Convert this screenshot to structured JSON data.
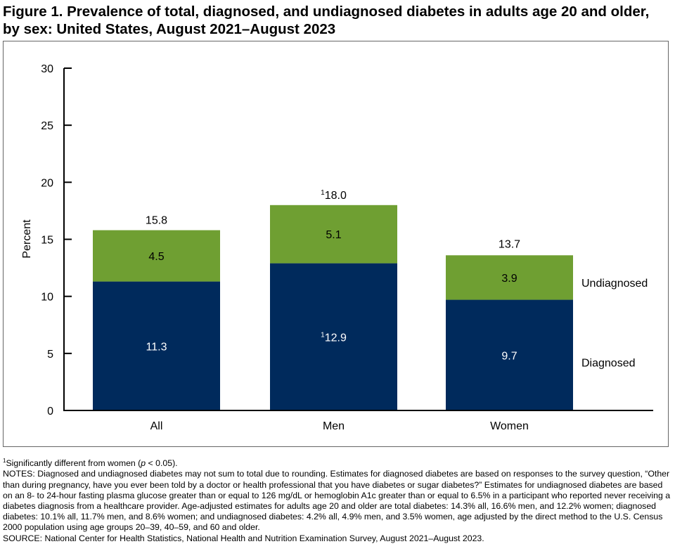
{
  "title": "Figure 1. Prevalence of total, diagnosed, and undiagnosed diabetes in adults age 20 and older, by sex: United States, August 2021–August 2023",
  "chart_data": {
    "type": "stacked-bar",
    "categories": [
      "All",
      "Men",
      "Women"
    ],
    "series": [
      {
        "name": "Diagnosed",
        "values": [
          11.3,
          12.9,
          9.7
        ],
        "labels": [
          "11.3",
          "12.9",
          "9.7"
        ],
        "label_markers": [
          "",
          "1",
          ""
        ],
        "color": "#002a5c"
      },
      {
        "name": "Undiagnosed",
        "values": [
          4.5,
          5.1,
          3.9
        ],
        "labels": [
          "4.5",
          "5.1",
          "3.9"
        ],
        "label_markers": [
          "",
          "",
          ""
        ],
        "color": "#6f9f32"
      }
    ],
    "totals": [
      15.8,
      18.0,
      13.7
    ],
    "total_labels": [
      "15.8",
      "18.0",
      "13.7"
    ],
    "total_markers": [
      "",
      "1",
      ""
    ],
    "ylabel": "Percent",
    "xlabel": "",
    "ylim": [
      0,
      30
    ],
    "yticks": [
      0,
      5,
      10,
      15,
      20,
      25,
      30
    ],
    "grid": false,
    "legend_placement": "right, inline labels"
  },
  "footnotes": {
    "sig_marker": "1",
    "sig_text_before": "Significantly different from women (",
    "sig_p": "p",
    "sig_text_after": " < 0.05).",
    "notes": "NOTES: Diagnosed and undiagnosed diabetes may not sum to total due to rounding. Estimates for diagnosed diabetes are based on responses to the survey question, “Other than during pregnancy, have you ever been told by a doctor or health professional that you have diabetes or sugar diabetes?” Estimates for undiagnosed diabetes are based on an 8- to 24-hour fasting plasma glucose greater than or equal to 126 mg/dL or hemoglobin A1c greater than or equal to 6.5% in a participant who reported never receiving a diabetes diagnosis from a healthcare provider. Age-adjusted estimates for adults age 20 and older are total diabetes: 14.3% all, 16.6% men, and 12.2% women; diagnosed diabetes: 10.1% all, 11.7% men, and 8.6% women; and undiagnosed diabetes: 4.2% all, 4.9% men, and 3.5% women, age adjusted by the direct method to the U.S. Census 2000 population using age groups 20–39, 40–59, and 60 and older.",
    "source": "SOURCE: National Center for Health Statistics, National Health and Nutrition Examination Survey, August 2021–August 2023."
  }
}
